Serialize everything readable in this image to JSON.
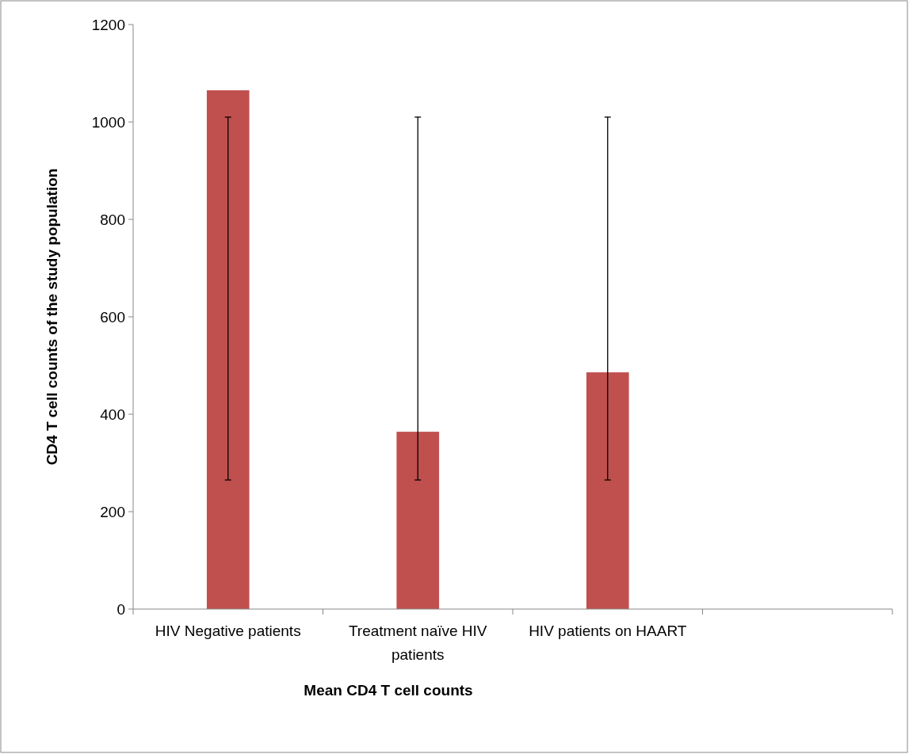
{
  "chart_data": {
    "type": "bar",
    "xlabel": "Mean CD4 T cell counts",
    "ylabel": "CD4 T cell counts of the study population",
    "categories": [
      "HIV Negative patients",
      "Treatment naïve HIV patients",
      "HIV patients on HAART",
      null
    ],
    "values": [
      1065,
      364,
      486,
      null
    ],
    "errors": [
      [
        265,
        1010
      ],
      [
        265,
        1010
      ],
      [
        265,
        1010
      ],
      null
    ],
    "color": "#c0504d",
    "ylim": [
      0,
      1200
    ],
    "yticks": [
      0,
      200,
      400,
      600,
      800,
      1000,
      1200
    ],
    "grid": false
  }
}
